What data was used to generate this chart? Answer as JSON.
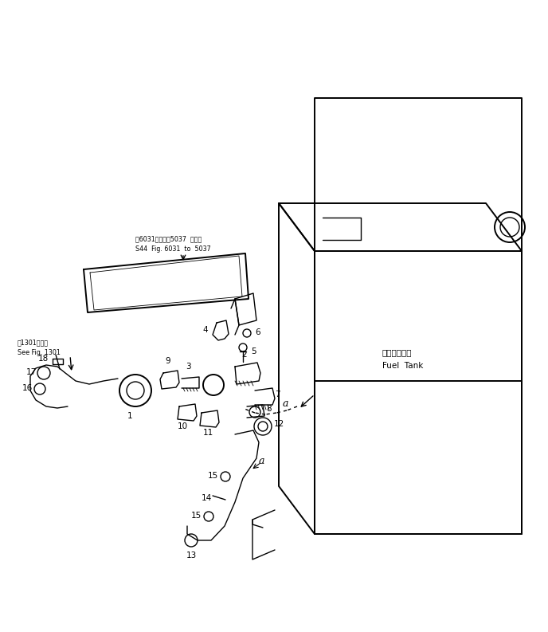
{
  "bg_color": "#ffffff",
  "line_color": "#000000",
  "text_color": "#000000",
  "fig_width": 6.88,
  "fig_height": 7.93,
  "dpi": 100,
  "annotation_note1_line1": "第6031図から第5037  図参照",
  "annotation_note1_line2": "S44  Fig. 6031  to  5037",
  "annotation_note2_line1": "第1301図参照",
  "annotation_note2_line2": "See Fig. 1301",
  "fuel_tank_label_jp": "フェルタンク",
  "fuel_tank_label_en": "Fuel  Tank",
  "lw": 1.0,
  "lw_thin": 0.6,
  "lw_thick": 1.4
}
